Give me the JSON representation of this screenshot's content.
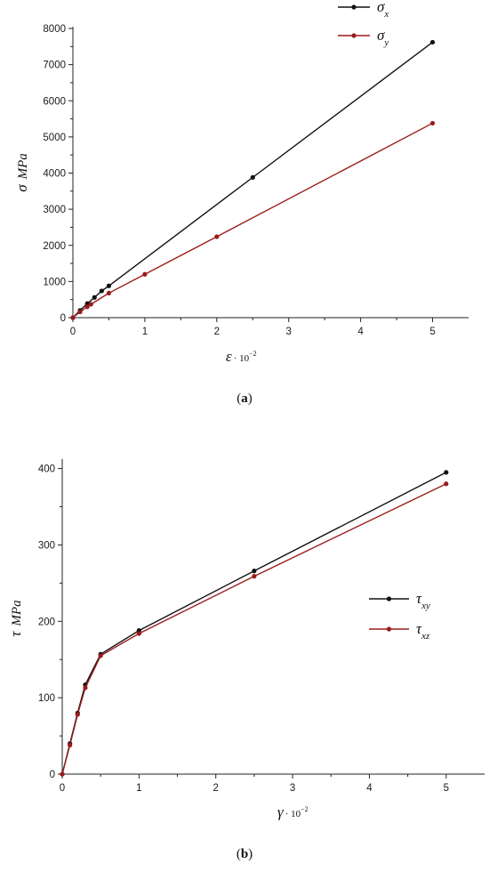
{
  "chart_data": [
    {
      "type": "line",
      "panel_label": "a",
      "ylabel_symbol": "σ",
      "ylabel_unit": "MPa",
      "xlabel_symbol": "ε",
      "xlabel_scale": "· 10",
      "xlabel_exponent": "−2",
      "xlim": [
        0,
        5.5
      ],
      "ylim": [
        0,
        8000
      ],
      "xticks": [
        0,
        1,
        2,
        3,
        4,
        5
      ],
      "yticks": [
        0,
        1000,
        2000,
        3000,
        4000,
        5000,
        6000,
        7000,
        8000
      ],
      "legend_position": "top-right",
      "grid": false,
      "series": [
        {
          "name": "σ",
          "name_sub": "x",
          "color": "#111111",
          "x": [
            0,
            0.1,
            0.2,
            0.3,
            0.4,
            0.5,
            2.5,
            5.0
          ],
          "y": [
            0,
            200,
            390,
            560,
            740,
            880,
            3880,
            7620
          ]
        },
        {
          "name": "σ",
          "name_sub": "y",
          "color": "#9b1b1b",
          "x": [
            0,
            0.1,
            0.2,
            0.25,
            0.5,
            1.0,
            2.0,
            5.0
          ],
          "y": [
            0,
            160,
            300,
            370,
            680,
            1200,
            2240,
            5380
          ]
        }
      ]
    },
    {
      "type": "line",
      "panel_label": "b",
      "ylabel_symbol": "τ",
      "ylabel_unit": "MPa",
      "xlabel_symbol": "γ",
      "xlabel_scale": "· 10",
      "xlabel_exponent": "−2",
      "xlim": [
        0,
        5.5
      ],
      "ylim": [
        0,
        410
      ],
      "xticks": [
        0,
        1,
        2,
        3,
        4,
        5
      ],
      "yticks": [
        0,
        100,
        200,
        300,
        400
      ],
      "legend_position": "center-right",
      "grid": false,
      "series": [
        {
          "name": "τ",
          "name_sub": "xy",
          "color": "#111111",
          "x": [
            0,
            0.1,
            0.2,
            0.3,
            0.5,
            1.0,
            2.5,
            5.0
          ],
          "y": [
            0,
            40,
            80,
            117,
            157,
            188,
            266,
            395
          ]
        },
        {
          "name": "τ",
          "name_sub": "xz",
          "color": "#9b1b1b",
          "x": [
            0,
            0.1,
            0.2,
            0.3,
            0.5,
            1.0,
            2.5,
            5.0
          ],
          "y": [
            0,
            38,
            78,
            113,
            155,
            184,
            259,
            380
          ]
        }
      ]
    }
  ]
}
